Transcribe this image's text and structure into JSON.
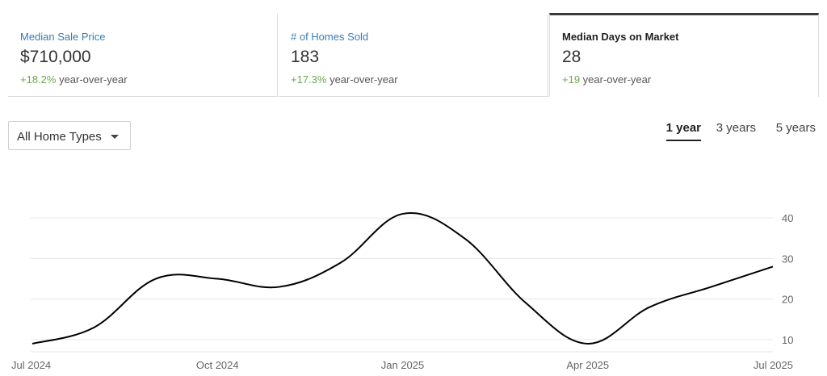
{
  "stats": [
    {
      "label": "Median Sale Price",
      "value": "$710,000",
      "delta": "+18.2%",
      "suffix": " year-over-year"
    },
    {
      "label": "# of Homes Sold",
      "value": "183",
      "delta": "+17.3%",
      "suffix": " year-over-year"
    },
    {
      "label": "Median Days on Market",
      "value": "28",
      "delta": "+19",
      "suffix": " year-over-year"
    }
  ],
  "filter": {
    "selected": "All Home Types"
  },
  "ranges": [
    {
      "label": "1 year",
      "active": true
    },
    {
      "label": "3 years",
      "active": false
    },
    {
      "label": "5 years",
      "active": false
    }
  ],
  "colors": {
    "accent": "#3b7bb5",
    "positive": "#6aa84f",
    "line": "#000000"
  },
  "icons": {
    "dropdown": "chevron-down-icon"
  },
  "chart_data": {
    "type": "line",
    "x": [
      "2024-07",
      "2024-08",
      "2024-09",
      "2024-10",
      "2024-11",
      "2024-12",
      "2025-01",
      "2025-02",
      "2025-03",
      "2025-04",
      "2025-05",
      "2025-06",
      "2025-07"
    ],
    "series": [
      {
        "values": [
          9,
          13,
          25,
          25,
          23,
          29,
          41,
          35,
          19,
          9,
          18,
          23,
          28
        ]
      }
    ],
    "xtick_labels": [
      "Jul 2024",
      "Oct 2024",
      "Jan 2025",
      "Apr 2025",
      "Jul 2025"
    ],
    "ytick_labels": [
      "10",
      "20",
      "30",
      "40"
    ],
    "yticks": [
      10,
      20,
      30,
      40
    ],
    "ylim": [
      7,
      44
    ],
    "grid": true,
    "yaxis_side": "right"
  }
}
